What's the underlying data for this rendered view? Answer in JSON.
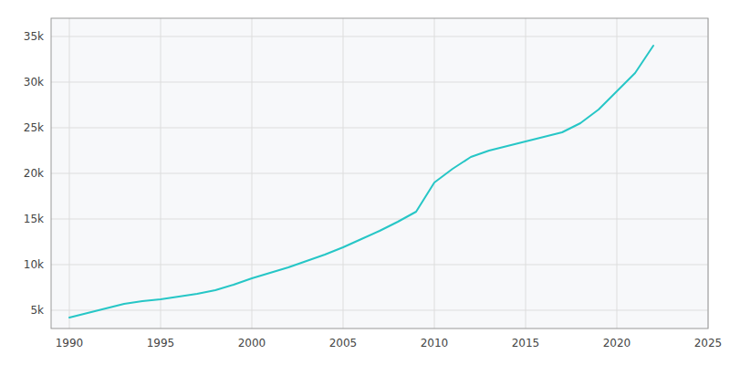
{
  "chart_data": {
    "type": "line",
    "x": [
      1990,
      1991,
      1992,
      1993,
      1994,
      1995,
      1996,
      1997,
      1998,
      1999,
      2000,
      2001,
      2002,
      2003,
      2004,
      2005,
      2006,
      2007,
      2008,
      2009,
      2010,
      2011,
      2012,
      2013,
      2014,
      2015,
      2016,
      2017,
      2018,
      2019,
      2020,
      2021,
      2022
    ],
    "values": [
      4200,
      4700,
      5200,
      5700,
      6000,
      6200,
      6500,
      6800,
      7200,
      7800,
      8500,
      9100,
      9700,
      10400,
      11100,
      11900,
      12800,
      13700,
      14700,
      15800,
      19000,
      20500,
      21800,
      22500,
      23000,
      23500,
      24000,
      24500,
      25500,
      27000,
      29000,
      31000,
      34000
    ],
    "color": "#26c6c6",
    "xlim": [
      1989,
      2025
    ],
    "ylim": [
      3000,
      37000
    ],
    "xticks": [
      1990,
      1995,
      2000,
      2005,
      2010,
      2015,
      2020,
      2025
    ],
    "yticks": [
      {
        "value": 5000,
        "label": "5k"
      },
      {
        "value": 10000,
        "label": "10k"
      },
      {
        "value": 15000,
        "label": "15k"
      },
      {
        "value": 20000,
        "label": "20k"
      },
      {
        "value": 25000,
        "label": "25k"
      },
      {
        "value": 30000,
        "label": "30k"
      },
      {
        "value": 35000,
        "label": "35k"
      }
    ],
    "grid": true
  }
}
